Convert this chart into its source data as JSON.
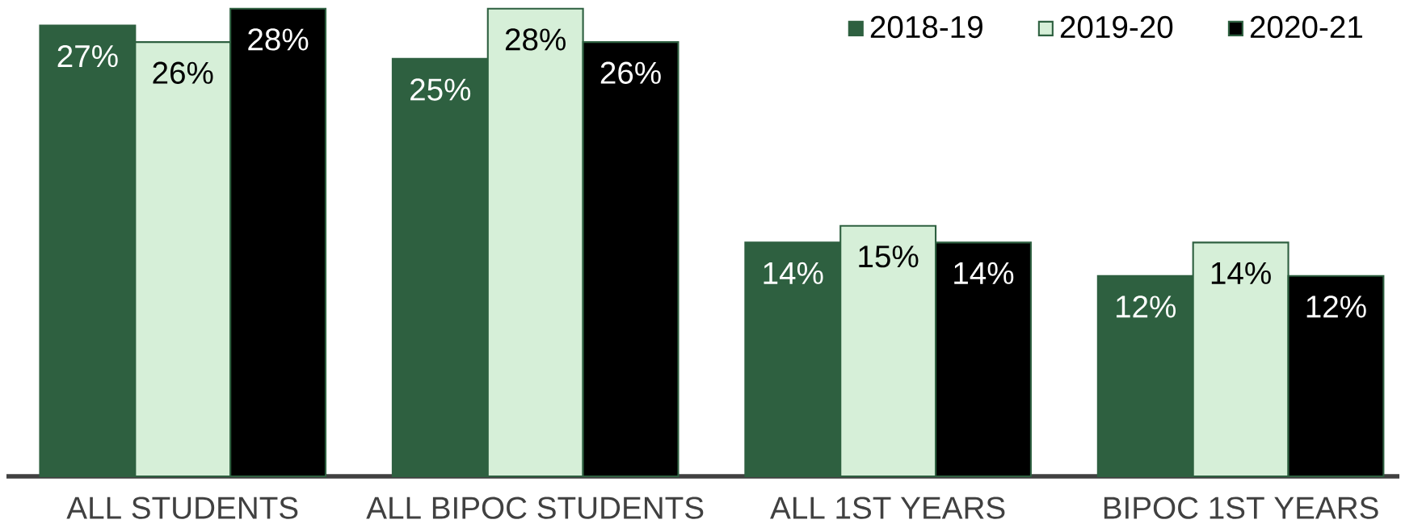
{
  "chart_data": {
    "type": "bar",
    "categories": [
      "ALL STUDENTS",
      "ALL BIPOC STUDENTS",
      "ALL 1ST YEARS",
      "BIPOC 1ST YEARS"
    ],
    "series": [
      {
        "name": "2018-19",
        "color": "#2e6040",
        "values": [
          27,
          25,
          14,
          12
        ],
        "value_labels": [
          "27%",
          "25%",
          "14%",
          "12%"
        ]
      },
      {
        "name": "2019-20",
        "color": "#d6efd8",
        "values": [
          26,
          28,
          15,
          14
        ],
        "value_labels": [
          "26%",
          "28%",
          "15%",
          "14%"
        ]
      },
      {
        "name": "2020-21",
        "color": "#000000",
        "values": [
          28,
          26,
          14,
          12
        ],
        "value_labels": [
          "28%",
          "26%",
          "14%",
          "12%"
        ]
      }
    ],
    "legend": "top right"
  }
}
